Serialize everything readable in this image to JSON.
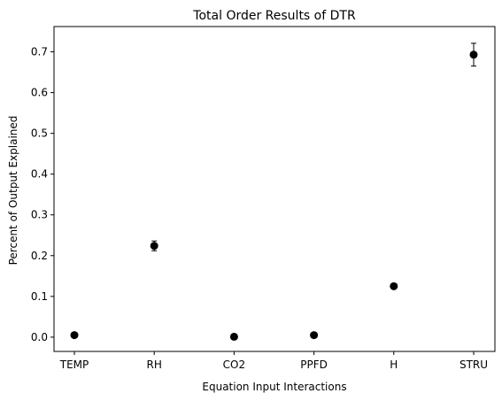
{
  "chart_data": {
    "type": "scatter",
    "title": "Total Order Results of DTR",
    "xlabel": "Equation Input Interactions",
    "ylabel": "Percent of Output Explained",
    "categories": [
      "TEMP",
      "RH",
      "CO2",
      "PPFD",
      "H",
      "STRU"
    ],
    "series": [
      {
        "values": [
          0.005,
          0.224,
          0.001,
          0.005,
          0.125,
          0.693
        ],
        "errors": [
          0.004,
          0.012,
          0.003,
          0.004,
          0.006,
          0.028
        ],
        "color": "#000000"
      }
    ],
    "ylim": [
      -0.035,
      0.762
    ],
    "yticks": [
      0.0,
      0.1,
      0.2,
      0.3,
      0.4,
      0.5,
      0.6,
      0.7
    ],
    "ytick_labels": [
      "0.0",
      "0.1",
      "0.2",
      "0.3",
      "0.4",
      "0.5",
      "0.6",
      "0.7"
    ],
    "grid": false,
    "legend": "none"
  }
}
